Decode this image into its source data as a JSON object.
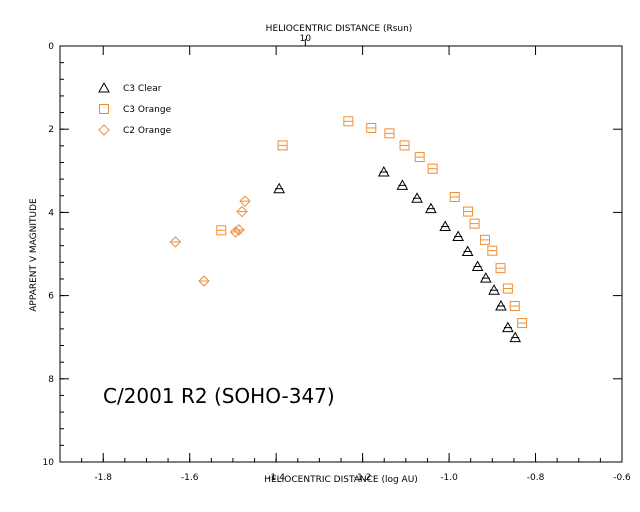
{
  "chart_data": {
    "type": "scatter",
    "top_axis_label": "HELIOCENTRIC DISTANCE (Rsun)",
    "top_axis_tick_labels": [
      {
        "value": -1.3325,
        "label": "10"
      }
    ],
    "xlabel": "HELIOCENTRIC DISTANCE (log AU)",
    "ylabel": "APPARENT V MAGNITUDE",
    "xlim": [
      -1.9,
      -0.6
    ],
    "ylim": [
      10,
      0
    ],
    "x_ticks": [
      -1.8,
      -1.6,
      -1.4,
      -1.2,
      -1.0,
      -0.8,
      -0.6
    ],
    "x_tick_labels": [
      "-1.8",
      "-1.6",
      "-1.4",
      "-1.2",
      "-1.0",
      "-0.8",
      "-0.6"
    ],
    "y_ticks": [
      0,
      2,
      4,
      6,
      8,
      10
    ],
    "y_tick_labels": [
      "0",
      "2",
      "4",
      "6",
      "8",
      "10"
    ],
    "annotation": "C/2001 R2 (SOHO-347)",
    "legend_position": "top-left",
    "series": [
      {
        "name": "C3 Clear",
        "marker": "triangle",
        "color": "#000000",
        "points": [
          {
            "x": -1.393,
            "y": 3.43
          },
          {
            "x": -1.151,
            "y": 3.03
          },
          {
            "x": -1.108,
            "y": 3.35
          },
          {
            "x": -1.074,
            "y": 3.66
          },
          {
            "x": -1.042,
            "y": 3.91
          },
          {
            "x": -1.009,
            "y": 4.34
          },
          {
            "x": -0.979,
            "y": 4.58
          },
          {
            "x": -0.957,
            "y": 4.94
          },
          {
            "x": -0.934,
            "y": 5.3
          },
          {
            "x": -0.915,
            "y": 5.58
          },
          {
            "x": -0.896,
            "y": 5.87
          },
          {
            "x": -0.88,
            "y": 6.25
          },
          {
            "x": -0.864,
            "y": 6.77
          },
          {
            "x": -0.847,
            "y": 7.01
          }
        ]
      },
      {
        "name": "C3 Orange",
        "marker": "square",
        "color": "#f08c32",
        "points": [
          {
            "x": -1.527,
            "y": 4.43
          },
          {
            "x": -1.385,
            "y": 2.39
          },
          {
            "x": -1.233,
            "y": 1.81
          },
          {
            "x": -1.18,
            "y": 1.97
          },
          {
            "x": -1.138,
            "y": 2.1
          },
          {
            "x": -1.103,
            "y": 2.39
          },
          {
            "x": -1.068,
            "y": 2.67
          },
          {
            "x": -1.038,
            "y": 2.95
          },
          {
            "x": -0.987,
            "y": 3.63
          },
          {
            "x": -0.956,
            "y": 3.98
          },
          {
            "x": -0.941,
            "y": 4.27
          },
          {
            "x": -0.917,
            "y": 4.66
          },
          {
            "x": -0.9,
            "y": 4.92
          },
          {
            "x": -0.881,
            "y": 5.34
          },
          {
            "x": -0.864,
            "y": 5.83
          },
          {
            "x": -0.848,
            "y": 6.25
          },
          {
            "x": -0.831,
            "y": 6.66
          }
        ]
      },
      {
        "name": "C2 Orange",
        "marker": "diamond",
        "color": "#f08c32",
        "points": [
          {
            "x": -1.633,
            "y": 4.71
          },
          {
            "x": -1.567,
            "y": 5.65
          },
          {
            "x": -1.494,
            "y": 4.47
          },
          {
            "x": -1.486,
            "y": 4.42
          },
          {
            "x": -1.479,
            "y": 3.98
          },
          {
            "x": -1.472,
            "y": 3.73
          }
        ]
      }
    ]
  }
}
